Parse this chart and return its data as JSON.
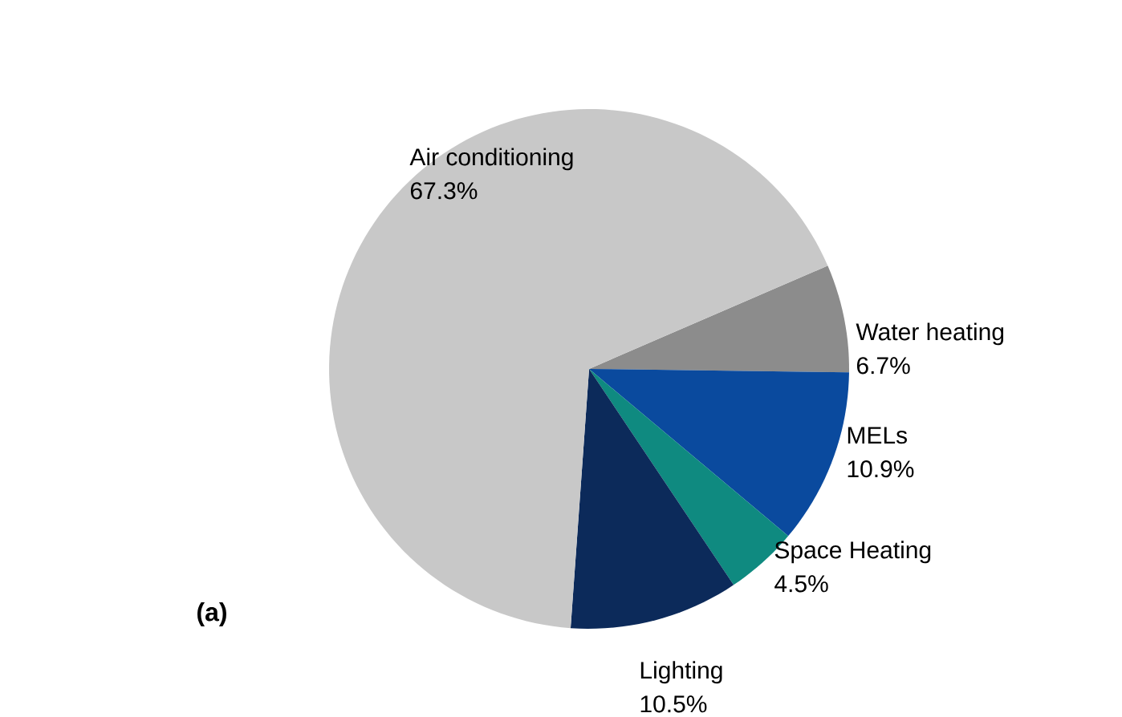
{
  "chart_data": {
    "type": "pie",
    "categories": [
      "Water heating",
      "MELs",
      "Space Heating",
      "Lighting",
      "Air conditioning"
    ],
    "values": [
      6.7,
      10.9,
      4.5,
      10.5,
      67.3
    ],
    "value_labels": [
      "6.7%",
      "10.9%",
      "4.5%",
      "10.5%",
      "67.3%"
    ],
    "colors": [
      "#8c8c8c",
      "#0a4a9e",
      "#0f8a80",
      "#0c2a5a",
      "#c8c8c8"
    ],
    "annotations": [
      "(a)"
    ]
  }
}
